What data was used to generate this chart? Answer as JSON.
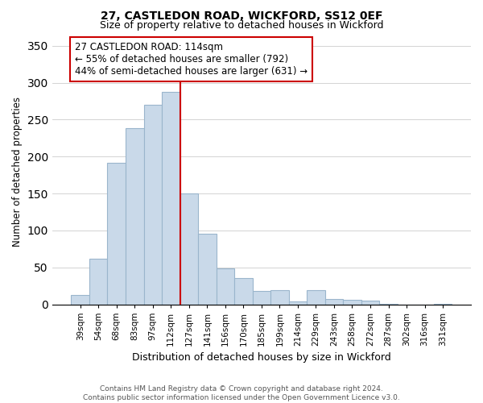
{
  "title": "27, CASTLEDON ROAD, WICKFORD, SS12 0EF",
  "subtitle": "Size of property relative to detached houses in Wickford",
  "xlabel": "Distribution of detached houses by size in Wickford",
  "ylabel": "Number of detached properties",
  "bar_labels": [
    "39sqm",
    "54sqm",
    "68sqm",
    "83sqm",
    "97sqm",
    "112sqm",
    "127sqm",
    "141sqm",
    "156sqm",
    "170sqm",
    "185sqm",
    "199sqm",
    "214sqm",
    "229sqm",
    "243sqm",
    "258sqm",
    "272sqm",
    "287sqm",
    "302sqm",
    "316sqm",
    "331sqm"
  ],
  "bar_heights": [
    13,
    62,
    192,
    238,
    270,
    287,
    150,
    96,
    49,
    35,
    18,
    19,
    4,
    19,
    7,
    6,
    5,
    1,
    0,
    0,
    1
  ],
  "bar_color": "#c9d9e9",
  "bar_edgecolor": "#9ab5cc",
  "vline_index": 5,
  "vline_color": "#cc0000",
  "ylim": [
    0,
    360
  ],
  "yticks": [
    0,
    50,
    100,
    150,
    200,
    250,
    300,
    350
  ],
  "annotation_title": "27 CASTLEDON ROAD: 114sqm",
  "annotation_line1": "← 55% of detached houses are smaller (792)",
  "annotation_line2": "44% of semi-detached houses are larger (631) →",
  "annotation_box_facecolor": "#ffffff",
  "annotation_box_edgecolor": "#cc0000",
  "footer_line1": "Contains HM Land Registry data © Crown copyright and database right 2024.",
  "footer_line2": "Contains public sector information licensed under the Open Government Licence v3.0."
}
